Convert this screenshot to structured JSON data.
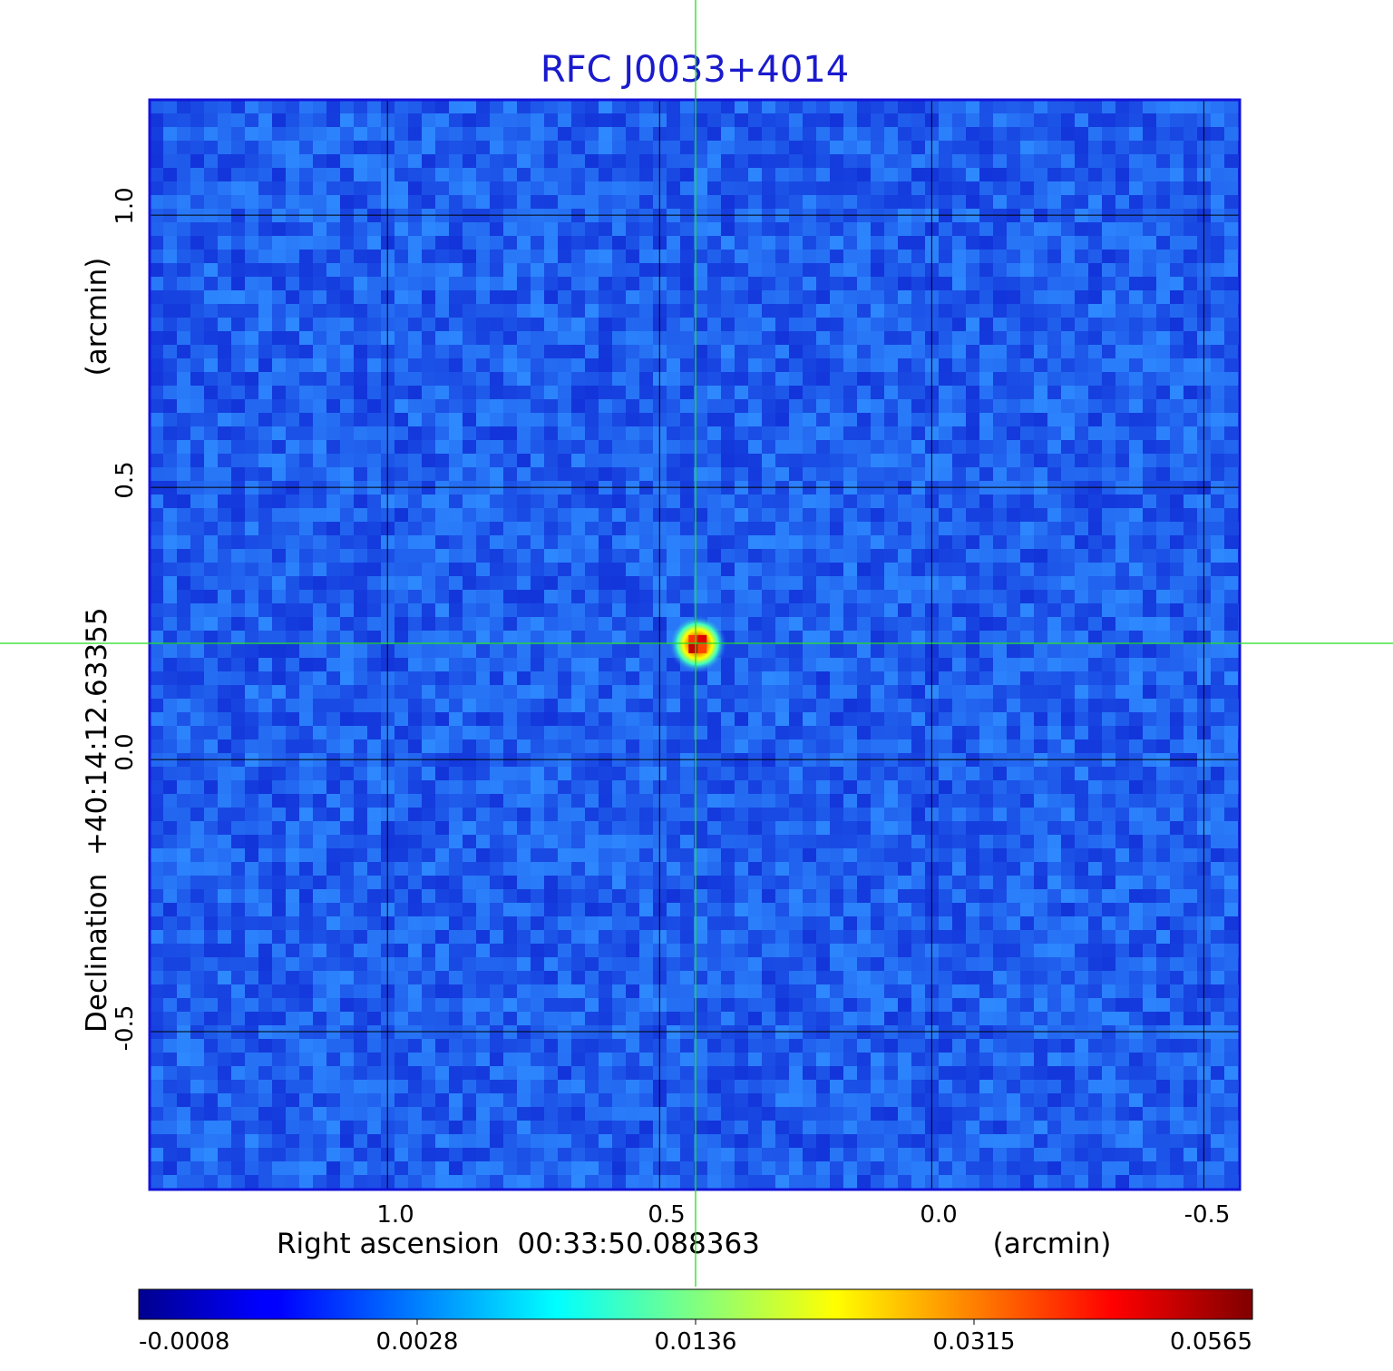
{
  "title": "RFC J0033+4014",
  "x_axis": {
    "label": "Right ascension  00:33:50.088363",
    "unit": "(arcmin)",
    "ticks": [
      "1.0",
      "0.5",
      "0.0",
      "-0.5"
    ],
    "tick_values": [
      1.0,
      0.5,
      0.0,
      -0.5
    ],
    "range": [
      1.437,
      -0.566
    ]
  },
  "y_axis": {
    "label": "Declination  +40:14:12.63355",
    "unit": "(arcmin)",
    "ticks": [
      "1.0",
      "0.5",
      "0.0",
      "-0.5"
    ],
    "tick_values": [
      1.0,
      0.5,
      0.0,
      -0.5
    ],
    "range": [
      -0.79,
      1.212
    ]
  },
  "colorbar": {
    "ticks": [
      "-0.0008",
      "0.0028",
      "0.0136",
      "0.0315",
      "0.0565"
    ],
    "colormap": "jet"
  },
  "crosshair": {
    "ra_offset": 0.433,
    "dec_offset": 0.212,
    "color": "#22dd22"
  },
  "source": {
    "ra_offset": 0.43,
    "dec_offset": 0.212,
    "peak": 0.0565
  },
  "colors": {
    "title": "#1a1acd",
    "grid": "#000000",
    "frame": "#1414d8"
  }
}
